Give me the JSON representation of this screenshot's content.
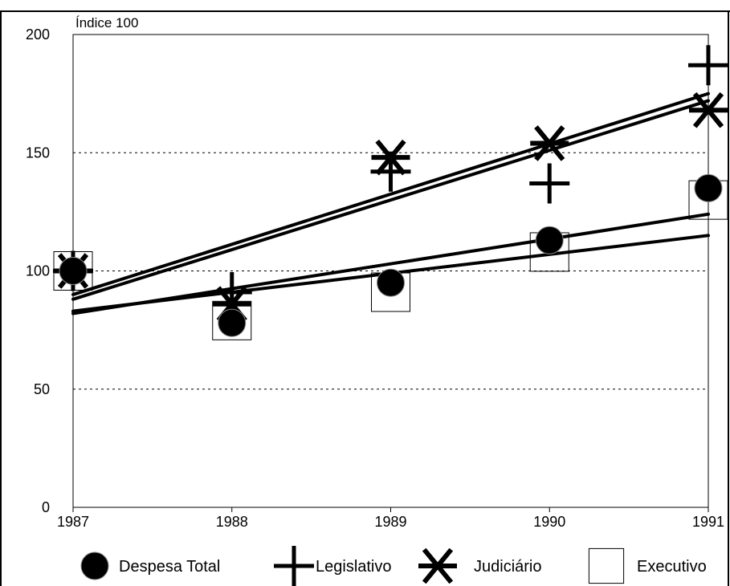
{
  "chart_data": {
    "type": "scatter",
    "title": "",
    "ylabel": "Índice 100",
    "xlabel": "",
    "x": [
      1987,
      1988,
      1989,
      1990,
      1991
    ],
    "x_tick_labels": [
      "1987",
      "1988",
      "1989",
      "1990",
      "1991"
    ],
    "ylim": [
      0,
      200
    ],
    "y_ticks": [
      0,
      50,
      100,
      150,
      200
    ],
    "y_tick_labels": [
      "0",
      "50",
      "100",
      "150",
      "200"
    ],
    "grid": "dashed horizontal at 50, 100, 150",
    "legend_position": "bottom",
    "series": [
      {
        "name": "Despesa Total",
        "marker": "filled-circle",
        "values": [
          100,
          78,
          95,
          113,
          135
        ],
        "trend": [
          83,
          115
        ]
      },
      {
        "name": "Legislativo",
        "marker": "plus",
        "values": [
          100,
          91,
          142,
          137,
          187
        ],
        "trend": [
          88,
          172
        ]
      },
      {
        "name": "Judiciário",
        "marker": "asterisk",
        "values": [
          100,
          86,
          148,
          154,
          168
        ],
        "trend": [
          90,
          175
        ]
      },
      {
        "name": "Executivo",
        "marker": "open-square",
        "values": [
          100,
          79,
          91,
          108,
          130
        ],
        "trend": [
          82,
          124
        ]
      }
    ],
    "colors": {
      "ink": "#000000",
      "grid": "#000000",
      "background": "#ffffff"
    }
  }
}
